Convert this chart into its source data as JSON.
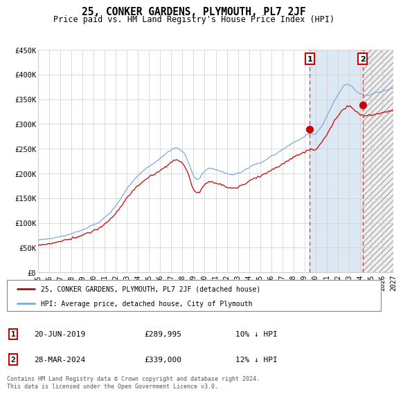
{
  "title": "25, CONKER GARDENS, PLYMOUTH, PL7 2JF",
  "subtitle": "Price paid vs. HM Land Registry's House Price Index (HPI)",
  "ylim": [
    0,
    450000
  ],
  "yticks": [
    0,
    50000,
    100000,
    150000,
    200000,
    250000,
    300000,
    350000,
    400000,
    450000
  ],
  "ytick_labels": [
    "£0",
    "£50K",
    "£100K",
    "£150K",
    "£200K",
    "£250K",
    "£300K",
    "£350K",
    "£400K",
    "£450K"
  ],
  "x_start_year": 1995,
  "x_end_year": 2027,
  "hpi_color": "#7aaadd",
  "price_color": "#cc0000",
  "marker1_date": 2019.47,
  "marker1_price": 289995,
  "marker2_date": 2024.24,
  "marker2_price": 339000,
  "legend_line1": "25, CONKER GARDENS, PLYMOUTH, PL7 2JF (detached house)",
  "legend_line2": "HPI: Average price, detached house, City of Plymouth",
  "footer": "Contains HM Land Registry data © Crown copyright and database right 2024.\nThis data is licensed under the Open Government Licence v3.0.",
  "bg_color": "#ffffff",
  "plot_bg_color": "#ffffff",
  "grid_color": "#cccccc",
  "span1_color": "#dde8f5",
  "span2_color": "#dddddd"
}
